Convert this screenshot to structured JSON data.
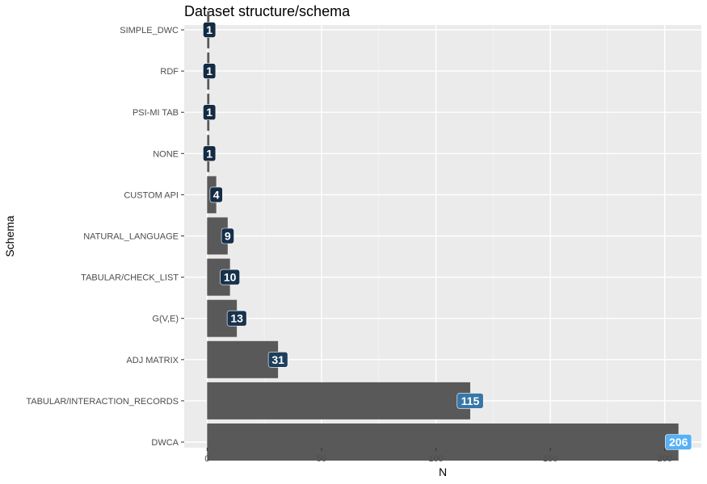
{
  "chart_data": {
    "type": "bar",
    "orientation": "horizontal",
    "title": "Dataset structure/schema",
    "xlabel": "N",
    "ylabel": "Schema",
    "categories": [
      "SIMPLE_DWC",
      "RDF",
      "PSI-MI TAB",
      "NONE",
      "CUSTOM API",
      "NATURAL_LANGUAGE",
      "TABULAR/CHECK_LIST",
      "G(V,E)",
      "ADJ MATRIX",
      "TABULAR/INTERACTION_RECORDS",
      "DWCA"
    ],
    "values": [
      1,
      1,
      1,
      1,
      4,
      9,
      10,
      13,
      31,
      115,
      206
    ],
    "data_labels": [
      "1",
      "1",
      "1",
      "1",
      "4",
      "9",
      "10",
      "13",
      "31",
      "115",
      "206"
    ],
    "xlim": [
      -10,
      216
    ],
    "x_ticks": [
      0,
      50,
      100,
      150,
      200
    ],
    "x_tick_labels": [
      "0",
      "50",
      "100",
      "150",
      "200"
    ],
    "grid": true,
    "legend": "none",
    "colors": {
      "panel_background": "#ebebeb",
      "grid_major": "#ffffff",
      "bar_fill": "#595959",
      "label_scale_low": "#132b43",
      "label_scale_high": "#56b1f7"
    }
  }
}
